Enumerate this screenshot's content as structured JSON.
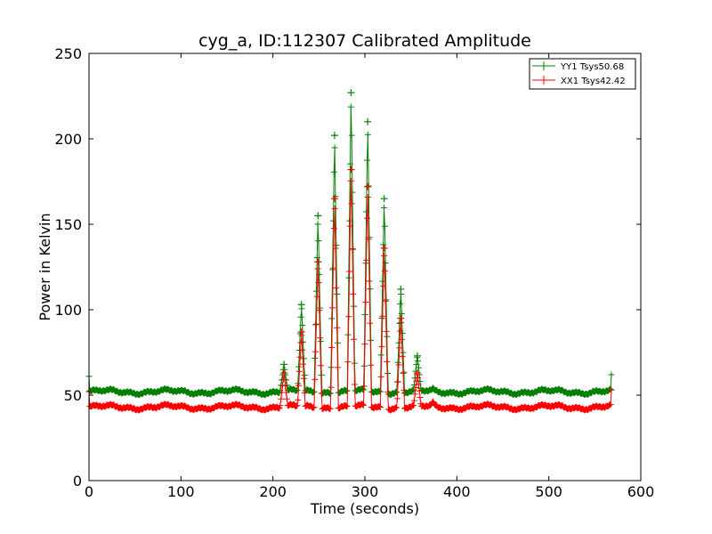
{
  "chart_data": {
    "type": "line",
    "title": "cyg_a, ID:112307 Calibrated Amplitude",
    "xlabel": "Time (seconds)",
    "ylabel": "Power in Kelvin",
    "xlim": [
      0,
      600
    ],
    "ylim": [
      0,
      250
    ],
    "xticks": [
      "0",
      "100",
      "200",
      "300",
      "400",
      "500",
      "600"
    ],
    "yticks": [
      "0",
      "50",
      "100",
      "150",
      "200",
      "250"
    ],
    "grid": false,
    "legend_position": "top-right",
    "colors": {
      "YY1": "#008000",
      "XX1": "#ff0000"
    },
    "x_range": [
      0,
      568
    ],
    "spike_times": [
      212,
      231,
      249,
      267,
      285,
      303,
      321,
      339,
      357,
      374
    ],
    "series": [
      {
        "name": "YY1",
        "label": "YY1 Tsys50.68",
        "color": "#008000",
        "baseline": 52,
        "endpoint_values": [
          61,
          62
        ],
        "spike_peaks": [
          68,
          103,
          155,
          202,
          227,
          210,
          165,
          112,
          73,
          54
        ]
      },
      {
        "name": "XX1",
        "label": "XX1 Tsys42.42",
        "color": "#ff0000",
        "baseline": 43,
        "endpoint_values": [
          52,
          53
        ],
        "spike_peaks": [
          63,
          87,
          128,
          165,
          182,
          172,
          136,
          95,
          63,
          46
        ]
      }
    ]
  }
}
